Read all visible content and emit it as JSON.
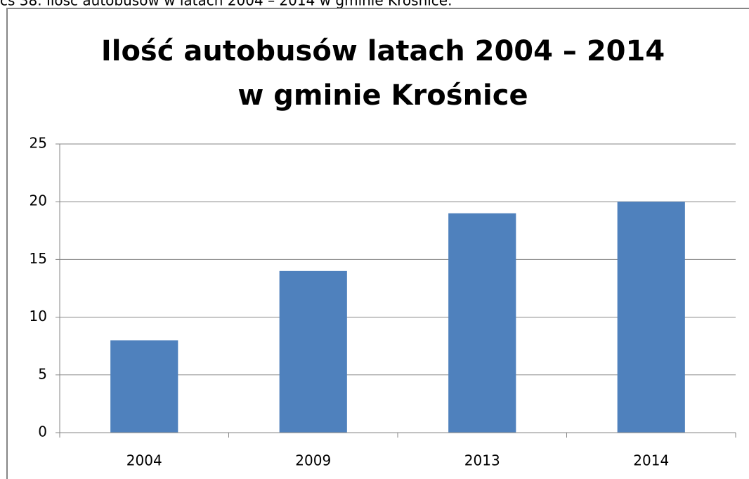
{
  "caption": "cs 38. Ilość autobusów w latach 2004 – 2014 w gminie Krośnice.",
  "chart_data": {
    "type": "bar",
    "title": [
      "Ilość autobusów latach 2004 – 2014",
      "w gminie Krośnice"
    ],
    "categories": [
      "2004",
      "2009",
      "2013",
      "2014"
    ],
    "values": [
      8,
      14,
      19,
      20
    ],
    "color": "#4f81bd",
    "ylim": [
      0,
      25
    ],
    "yticks": [
      0,
      5,
      10,
      15,
      20,
      25
    ],
    "grid": true
  }
}
